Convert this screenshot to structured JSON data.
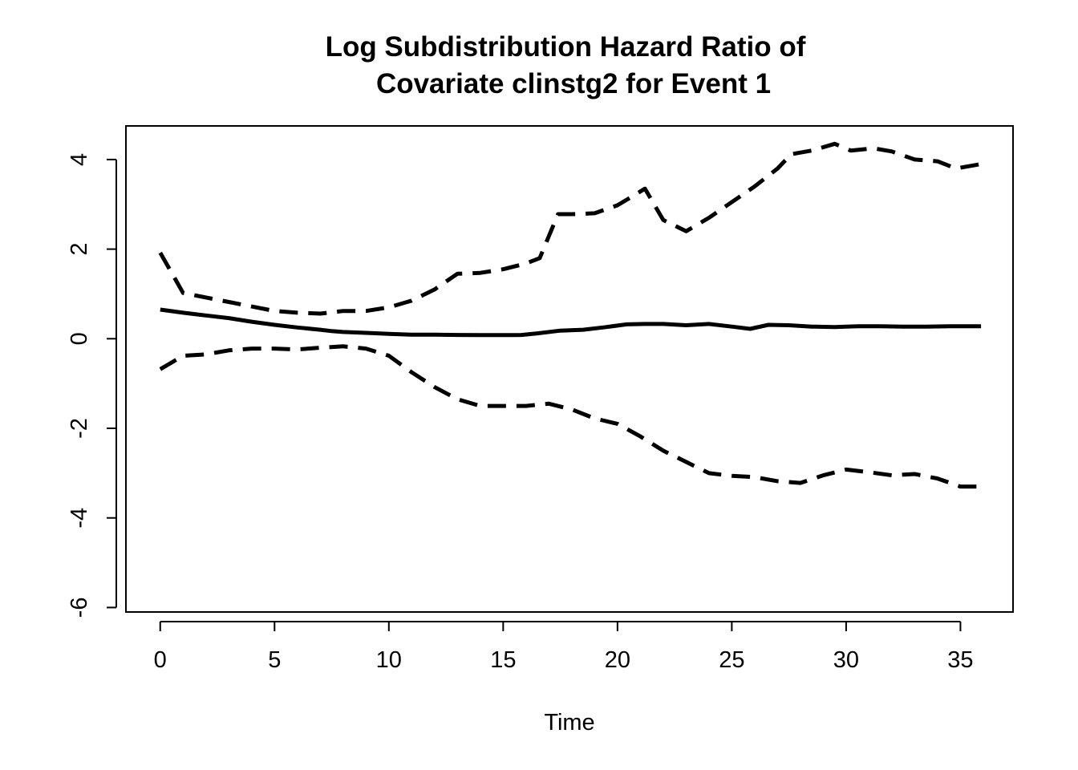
{
  "chart_data": {
    "type": "line",
    "title": [
      "Log Subdistribution Hazard Ratio of",
      "Covariate clinstg2 for Event 1"
    ],
    "xlabel": "Time",
    "ylabel": "",
    "xlim": [
      -1.5,
      37.3
    ],
    "ylim": [
      -6.1,
      4.75
    ],
    "x_ticks": [
      0,
      5,
      10,
      15,
      20,
      25,
      30,
      35
    ],
    "y_ticks": [
      -6,
      -4,
      -2,
      0,
      2,
      4
    ],
    "grid": false,
    "legend": "none",
    "series": [
      {
        "style": "solid",
        "color": "#000000",
        "points": [
          [
            0,
            0.65
          ],
          [
            1,
            0.58
          ],
          [
            2,
            0.52
          ],
          [
            3,
            0.46
          ],
          [
            4,
            0.38
          ],
          [
            5,
            0.31
          ],
          [
            6,
            0.25
          ],
          [
            7,
            0.2
          ],
          [
            7.5,
            0.17
          ],
          [
            8,
            0.15
          ],
          [
            9,
            0.13
          ],
          [
            10,
            0.11
          ],
          [
            11,
            0.09
          ],
          [
            12,
            0.09
          ],
          [
            13,
            0.085
          ],
          [
            14,
            0.08
          ],
          [
            15,
            0.08
          ],
          [
            15.8,
            0.085
          ],
          [
            16.5,
            0.12
          ],
          [
            17.5,
            0.18
          ],
          [
            18.5,
            0.2
          ],
          [
            19.5,
            0.26
          ],
          [
            20.4,
            0.32
          ],
          [
            21.2,
            0.33
          ],
          [
            22,
            0.33
          ],
          [
            23,
            0.3
          ],
          [
            24,
            0.33
          ],
          [
            25,
            0.27
          ],
          [
            25.8,
            0.22
          ],
          [
            26.6,
            0.31
          ],
          [
            27.5,
            0.3
          ],
          [
            28.5,
            0.27
          ],
          [
            29.5,
            0.26
          ],
          [
            30.5,
            0.28
          ],
          [
            31.5,
            0.28
          ],
          [
            32.5,
            0.27
          ],
          [
            33.5,
            0.27
          ],
          [
            34.5,
            0.28
          ],
          [
            35.9,
            0.28
          ]
        ]
      },
      {
        "style": "dashed",
        "color": "#000000",
        "points": [
          [
            0,
            1.92
          ],
          [
            1,
            1.02
          ],
          [
            2,
            0.92
          ],
          [
            3,
            0.82
          ],
          [
            4,
            0.72
          ],
          [
            5,
            0.62
          ],
          [
            6,
            0.58
          ],
          [
            7,
            0.56
          ],
          [
            8,
            0.62
          ],
          [
            9,
            0.62
          ],
          [
            10,
            0.7
          ],
          [
            11,
            0.85
          ],
          [
            12,
            1.1
          ],
          [
            13,
            1.45
          ],
          [
            14,
            1.47
          ],
          [
            15,
            1.55
          ],
          [
            16,
            1.68
          ],
          [
            16.6,
            1.8
          ],
          [
            17.4,
            2.78
          ],
          [
            18,
            2.78
          ],
          [
            19,
            2.8
          ],
          [
            20,
            2.98
          ],
          [
            21.2,
            3.35
          ],
          [
            22,
            2.65
          ],
          [
            23,
            2.4
          ],
          [
            24,
            2.7
          ],
          [
            25,
            3.05
          ],
          [
            26,
            3.4
          ],
          [
            27,
            3.8
          ],
          [
            27.6,
            4.12
          ],
          [
            28.5,
            4.2
          ],
          [
            29.5,
            4.35
          ],
          [
            30.2,
            4.2
          ],
          [
            31.2,
            4.25
          ],
          [
            32,
            4.18
          ],
          [
            33,
            4.0
          ],
          [
            34,
            3.96
          ],
          [
            34.8,
            3.8
          ],
          [
            35.9,
            3.9
          ]
        ]
      },
      {
        "style": "dashed",
        "color": "#000000",
        "points": [
          [
            0,
            -0.68
          ],
          [
            1,
            -0.38
          ],
          [
            2,
            -0.35
          ],
          [
            3,
            -0.26
          ],
          [
            4,
            -0.22
          ],
          [
            5,
            -0.22
          ],
          [
            6,
            -0.24
          ],
          [
            7,
            -0.2
          ],
          [
            8,
            -0.17
          ],
          [
            9,
            -0.22
          ],
          [
            10,
            -0.38
          ],
          [
            11,
            -0.75
          ],
          [
            12,
            -1.08
          ],
          [
            13,
            -1.35
          ],
          [
            14,
            -1.5
          ],
          [
            15,
            -1.5
          ],
          [
            16,
            -1.5
          ],
          [
            17,
            -1.45
          ],
          [
            18,
            -1.58
          ],
          [
            19,
            -1.78
          ],
          [
            20,
            -1.9
          ],
          [
            21,
            -2.18
          ],
          [
            22,
            -2.5
          ],
          [
            23,
            -2.75
          ],
          [
            24,
            -3.0
          ],
          [
            25,
            -3.06
          ],
          [
            26,
            -3.09
          ],
          [
            27,
            -3.18
          ],
          [
            28,
            -3.22
          ],
          [
            29,
            -3.05
          ],
          [
            30,
            -2.92
          ],
          [
            31,
            -2.98
          ],
          [
            32,
            -3.05
          ],
          [
            33,
            -3.02
          ],
          [
            34,
            -3.12
          ],
          [
            35,
            -3.3
          ],
          [
            35.9,
            -3.3
          ]
        ]
      }
    ]
  }
}
